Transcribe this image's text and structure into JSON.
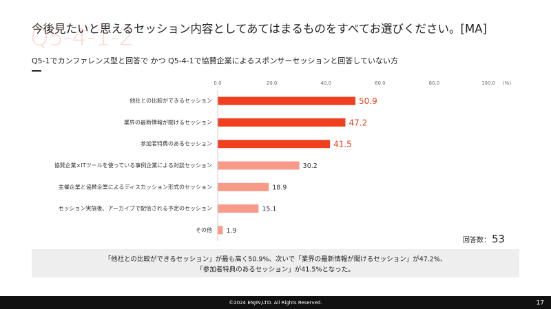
{
  "watermark": "Q5-4-1-2",
  "chart_data": {
    "type": "bar",
    "orientation": "horizontal",
    "title": "今後見たいと思えるセッション内容としてあてはまるものをすべてお選びください。[MA]",
    "subtitle": "Q5-1でカンファレンス型と回答で かつ Q5-4-1で協賛企業によるスポンサーセッションと回答していない方",
    "categories": [
      "他社との比較ができるセッション",
      "業界の最新情報が聞けるセッション",
      "参加者特典のあるセッション",
      "協賛企業×ITツールを使っている事例企業による対談セッション",
      "主催企業と協賛企業によるディスカッション形式のセッション",
      "セッション実施後、アーカイブで配信される予定のセッション",
      "その他"
    ],
    "values": [
      50.9,
      47.2,
      41.5,
      30.2,
      18.9,
      15.1,
      1.9
    ],
    "colors": [
      "#f0401f",
      "#f0401f",
      "#f0401f",
      "#f89a88",
      "#f89a88",
      "#f89a88",
      "#f89a88"
    ],
    "label_colors": [
      "#f0401f",
      "#f0401f",
      "#f0401f",
      "#333333",
      "#333333",
      "#333333",
      "#333333"
    ],
    "xlim": [
      0,
      100
    ],
    "xticks": [
      {
        "value": 0,
        "label": "0.0"
      },
      {
        "value": 20,
        "label": "20.0"
      },
      {
        "value": 40,
        "label": "40.0"
      },
      {
        "value": 60,
        "label": "60.0"
      },
      {
        "value": 80,
        "label": "80.0"
      },
      {
        "value": 100,
        "label": "100.0"
      }
    ],
    "unit_label": "(%)",
    "n_label": "回答数：",
    "n": 53
  },
  "summary": [
    "「他社との比較ができるセッション」が最も高く50.9%、次いで「業界の最新情報が聞けるセッション」が47.2%、",
    "「参加者特典のあるセッション」が41.5%となった。"
  ],
  "footer": {
    "copyright": "©2024 ENJIN,LTD. All Rights Reserved.",
    "page": "17"
  }
}
